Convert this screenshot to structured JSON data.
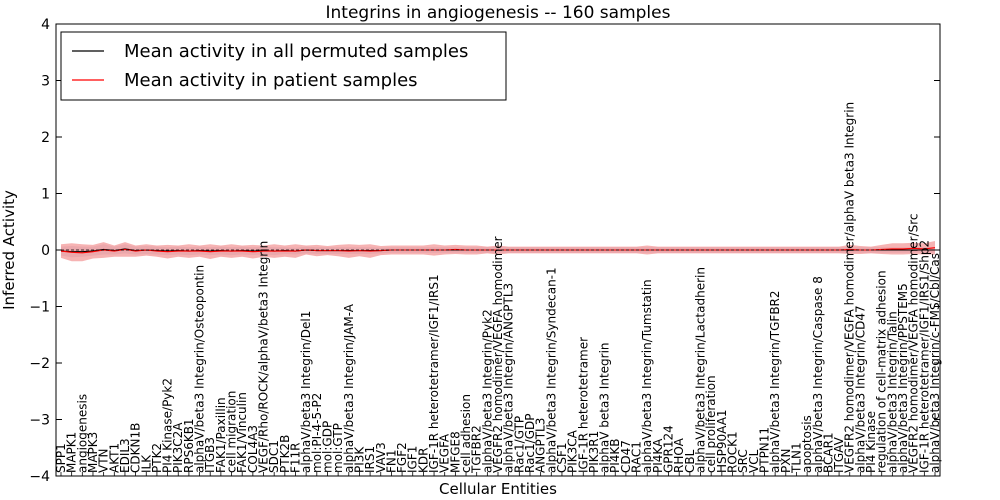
{
  "chart_data": {
    "type": "line",
    "title": "Integrins in angiogenesis -- 160 samples",
    "xlabel": "Cellular Entities",
    "ylabel": "Inferred Activity",
    "ylim": [
      -4,
      4
    ],
    "yticks": [
      "4",
      "3",
      "2",
      "1",
      "0",
      "−1",
      "−2",
      "−3",
      "−4"
    ],
    "grid": false,
    "legend_position": "top-left",
    "colors": {
      "permuted": "#000000",
      "patient": "#ff0000",
      "patient_band": "#f08080",
      "permuted_band": "#c8c8dc"
    },
    "legend": [
      {
        "name": "Mean activity in all permuted samples",
        "color": "#000000"
      },
      {
        "name": "Mean activity in patient samples",
        "color": "#ff0000"
      }
    ],
    "entities": [
      "SPP1",
      "MAPK1",
      "angiogenesis",
      "MAPK3",
      "VTN",
      "AKT1",
      "EDIL3",
      "CDKN1B",
      "ILK",
      "PTK2",
      "PI4 Kinase/Pyk2",
      "PIK3C2A",
      "RPS6KB1",
      "alphaV/beta3 Integrin/Osteopontin",
      "ITGB3",
      "FAK1/Paxillin",
      "cell migration",
      "FAK1/Vinculin",
      "COL4A3",
      "VEGF/Rho/ROCK/alphaV/beta3 Integrin",
      "SDC1",
      "PTK2B",
      "F11R",
      "alphaV/beta3 Integrin/Del1",
      "mol:PI-4-5-P2",
      "mol:GDP",
      "mol:GTP",
      "alphaV/beta3 Integrin/JAM-A",
      "PI3K",
      "IRS1",
      "VAV3",
      "FN1",
      "FGF2",
      "IGF1",
      "KDR",
      "IGF-1R heterotetramer/IGF1/IRS1",
      "VEGFA",
      "MFGE8",
      "cell adhesion",
      "TGFBR2",
      "alphaV/beta3 Integrin/Pyk2",
      "VEGFR2 homodimer/VEGFA homodimer",
      "alphaV/beta3 Integrin/ANGPTL3",
      "Rac1/GTP",
      "Rac1/GDP",
      "ANGPTL3",
      "alphaV/beta3 Integrin/Syndecan-1",
      "CSF1",
      "PIK3CA",
      "IGF-1R heterotetramer",
      "PIK3R1",
      "alphaV beta3 Integrin",
      "PI4KB",
      "CD47",
      "RAC1",
      "alphaV/beta3 Integrin/Tumstatin",
      "PI4KA",
      "GPR124",
      "RHOA",
      "CBL",
      "alphaV/beta3 Integrin/Lactadherin",
      "cell proliferation",
      "HSP90AA1",
      "ROCK1",
      "SRC",
      "VCL",
      "PTPN11",
      "alphaV/beta3 Integrin/TGFBR2",
      "PXN",
      "TLN1",
      "apoptosis",
      "alphaV/beta3 Integrin/Caspase 8",
      "BCAR1",
      "ITGAV",
      "VEGFR2 homodimer/VEGFA homodimer/alphaV beta3 Integrin",
      "alphaV/beta3 Integrin/CD47",
      "PI4 Kinase",
      "regulation of cell-matrix adhesion",
      "alphaV/beta3 Integrin/Talin",
      "alphaV/beta3 Integrin/PPSTEM5",
      "VEGFR2 homodimer/VEGFA homodimer/Src",
      "IGF-1R heterotetramer/IGF1/IRS1/Shp2",
      "alphaV/beta3 Integrin/c-FMS/Cbl/Cas"
    ],
    "series": [
      {
        "name": "Mean activity in all permuted samples",
        "values": [
          -0.02,
          -0.03,
          -0.03,
          -0.02,
          0.01,
          -0.01,
          0.02,
          -0.01,
          0.0,
          -0.01,
          -0.02,
          -0.01,
          -0.02,
          -0.01,
          -0.02,
          -0.01,
          -0.02,
          -0.01,
          -0.02,
          -0.01,
          -0.02,
          -0.01,
          -0.02,
          0.0,
          -0.01,
          -0.01,
          -0.01,
          -0.01,
          -0.01,
          -0.01,
          -0.01,
          0.0,
          0.0,
          0.0,
          0.0,
          0.0,
          0.0,
          0.0,
          0.0,
          0.0,
          0.0,
          0.0,
          0.0,
          0.0,
          0.0,
          0.0,
          0.0,
          0.0,
          0.0,
          0.0,
          0.0,
          0.0,
          0.0,
          0.0,
          0.0,
          0.0,
          0.0,
          0.0,
          0.0,
          0.0,
          0.0,
          0.0,
          0.0,
          0.0,
          0.0,
          0.0,
          0.0,
          0.0,
          0.0,
          0.0,
          0.0,
          0.0,
          0.0,
          0.0,
          0.0,
          0.0,
          0.0,
          0.0,
          0.0,
          0.0,
          0.0,
          0.0,
          0.0
        ],
        "band": [
          0.08,
          0.1,
          0.09,
          0.08,
          0.09,
          0.07,
          0.08,
          0.07,
          0.07,
          0.07,
          0.07,
          0.07,
          0.07,
          0.07,
          0.07,
          0.07,
          0.07,
          0.07,
          0.07,
          0.07,
          0.07,
          0.06,
          0.06,
          0.06,
          0.06,
          0.06,
          0.06,
          0.06,
          0.06,
          0.06,
          0.05,
          0.05,
          0.05,
          0.05,
          0.05,
          0.05,
          0.05,
          0.05,
          0.05,
          0.05,
          0.05,
          0.05,
          0.05,
          0.05,
          0.05,
          0.05,
          0.05,
          0.05,
          0.05,
          0.05,
          0.05,
          0.05,
          0.05,
          0.05,
          0.05,
          0.05,
          0.05,
          0.05,
          0.05,
          0.05,
          0.05,
          0.05,
          0.05,
          0.05,
          0.05,
          0.05,
          0.05,
          0.05,
          0.05,
          0.05,
          0.05,
          0.05,
          0.05,
          0.05,
          0.05,
          0.05,
          0.05,
          0.05,
          0.05,
          0.05,
          0.05,
          0.05,
          0.05
        ]
      },
      {
        "name": "Mean activity in patient samples",
        "values": [
          -0.02,
          -0.04,
          -0.05,
          -0.03,
          0.0,
          -0.02,
          0.01,
          -0.02,
          0.0,
          -0.02,
          -0.03,
          -0.02,
          -0.02,
          -0.02,
          -0.03,
          -0.02,
          -0.02,
          -0.02,
          -0.03,
          -0.02,
          -0.02,
          -0.02,
          -0.02,
          0.0,
          -0.01,
          -0.01,
          -0.01,
          -0.02,
          -0.01,
          -0.02,
          -0.01,
          0.0,
          0.0,
          0.0,
          0.0,
          0.0,
          0.0,
          0.01,
          0.0,
          0.0,
          0.0,
          0.0,
          0.0,
          0.0,
          0.0,
          0.0,
          0.0,
          0.0,
          0.0,
          0.0,
          0.0,
          0.0,
          0.0,
          0.0,
          0.0,
          0.0,
          0.0,
          0.0,
          0.0,
          0.0,
          0.0,
          0.0,
          0.0,
          0.0,
          0.0,
          0.0,
          0.0,
          0.0,
          0.0,
          0.0,
          0.0,
          0.0,
          0.0,
          0.0,
          0.01,
          0.0,
          0.0,
          0.01,
          0.02,
          0.02,
          0.03,
          0.02,
          0.04
        ],
        "band": [
          0.12,
          0.16,
          0.15,
          0.12,
          0.14,
          0.1,
          0.13,
          0.1,
          0.1,
          0.1,
          0.12,
          0.1,
          0.12,
          0.1,
          0.13,
          0.1,
          0.12,
          0.1,
          0.12,
          0.1,
          0.12,
          0.1,
          0.12,
          0.08,
          0.1,
          0.08,
          0.1,
          0.12,
          0.1,
          0.12,
          0.08,
          0.08,
          0.08,
          0.08,
          0.08,
          0.1,
          0.08,
          0.08,
          0.08,
          0.08,
          0.06,
          0.08,
          0.06,
          0.06,
          0.06,
          0.06,
          0.06,
          0.06,
          0.06,
          0.06,
          0.06,
          0.06,
          0.06,
          0.06,
          0.06,
          0.08,
          0.06,
          0.06,
          0.06,
          0.06,
          0.06,
          0.06,
          0.06,
          0.06,
          0.06,
          0.06,
          0.06,
          0.06,
          0.06,
          0.06,
          0.06,
          0.06,
          0.06,
          0.06,
          0.08,
          0.07,
          0.06,
          0.08,
          0.1,
          0.1,
          0.1,
          0.1,
          0.12
        ]
      }
    ]
  }
}
